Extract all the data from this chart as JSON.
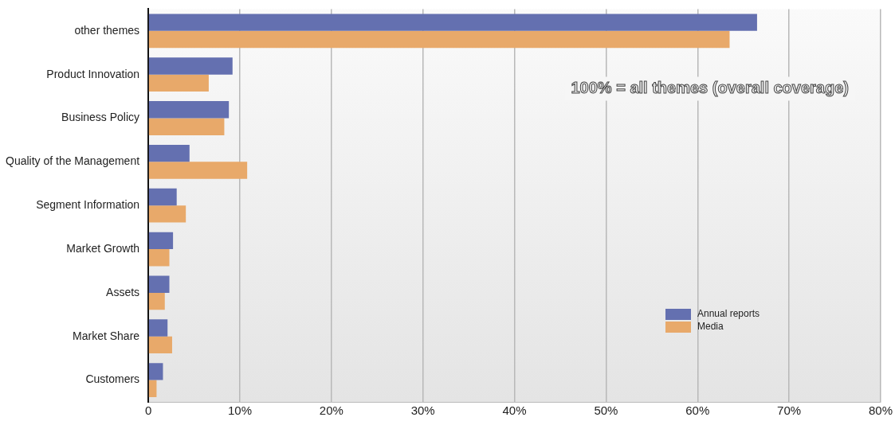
{
  "chart_data": {
    "type": "bar",
    "orientation": "horizontal",
    "categories": [
      "other themes",
      "Product Innovation",
      "Business Policy",
      "Quality of the Management",
      "Segment Information",
      "Market Growth",
      "Assets",
      "Market Share",
      "Customers"
    ],
    "series": [
      {
        "name": "Annual reports",
        "color": "#6470b0",
        "values": [
          66.5,
          9.2,
          8.8,
          4.5,
          3.1,
          2.7,
          2.3,
          2.1,
          1.6
        ]
      },
      {
        "name": "Media",
        "color": "#e8a96a",
        "values": [
          63.5,
          6.6,
          8.3,
          10.8,
          4.1,
          2.3,
          1.8,
          2.6,
          0.9
        ]
      }
    ],
    "xlim": [
      0,
      80
    ],
    "xticks": [
      0,
      {
        "value": 10,
        "label": "10%"
      },
      {
        "value": 20,
        "label": "20%"
      },
      {
        "value": 30,
        "label": "30%"
      },
      {
        "value": 40,
        "label": "40%"
      },
      {
        "value": 50,
        "label": "50%"
      },
      {
        "value": 60,
        "label": "60%"
      },
      {
        "value": 70,
        "label": "70%"
      },
      {
        "value": 80,
        "label": "80%"
      }
    ],
    "grid": "x",
    "legend": "bottom right",
    "annotations": [
      "100% = all themes (overall coverage)"
    ]
  }
}
